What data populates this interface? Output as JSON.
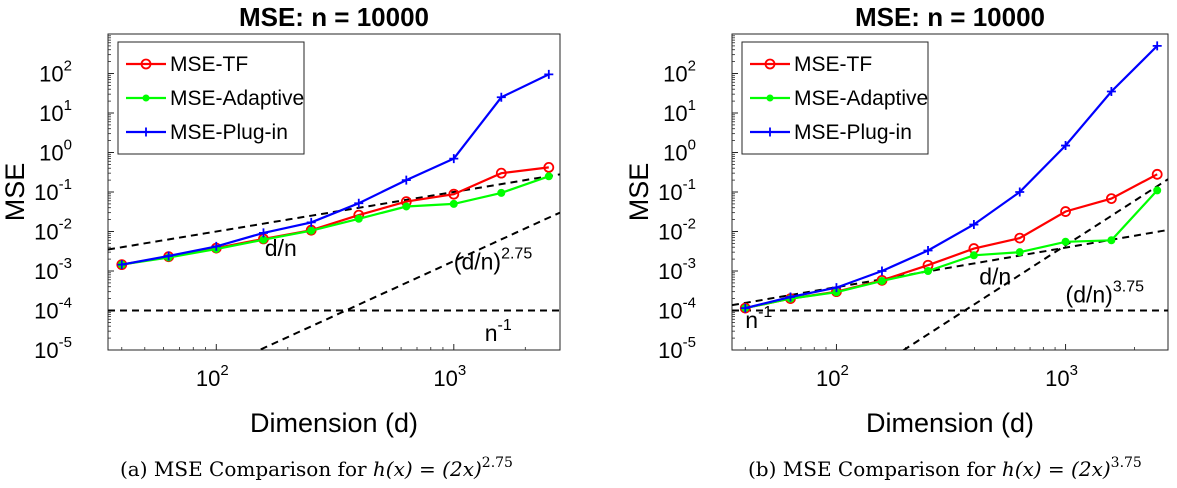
{
  "chart_data": [
    {
      "type": "line",
      "title": "MSE: n = 10000",
      "xlabel": "Dimension (d)",
      "ylabel": "MSE",
      "xscale": "log",
      "yscale": "log",
      "xlim": [
        35,
        2800
      ],
      "ylim": [
        1e-05,
        1000
      ],
      "grid": false,
      "legend_position": "top-left",
      "x_ticks": [
        {
          "value": 100,
          "base": "10",
          "exp": "2"
        },
        {
          "value": 1000,
          "base": "10",
          "exp": "3"
        }
      ],
      "y_ticks": [
        {
          "value": 1e-05,
          "base": "10",
          "exp": "-5"
        },
        {
          "value": 0.0001,
          "base": "10",
          "exp": "-4"
        },
        {
          "value": 0.001,
          "base": "10",
          "exp": "-3"
        },
        {
          "value": 0.01,
          "base": "10",
          "exp": "-2"
        },
        {
          "value": 0.1,
          "base": "10",
          "exp": "-1"
        },
        {
          "value": 1,
          "base": "10",
          "exp": "0"
        },
        {
          "value": 10,
          "base": "10",
          "exp": "1"
        },
        {
          "value": 100,
          "base": "10",
          "exp": "2"
        }
      ],
      "x": [
        40,
        63,
        100,
        158,
        251,
        398,
        631,
        1000,
        1585,
        2512
      ],
      "series": [
        {
          "name": "MSE-TF",
          "color": "#ff0000",
          "marker": "circle",
          "values": [
            0.00145,
            0.0023,
            0.0038,
            0.0065,
            0.0108,
            0.026,
            0.057,
            0.088,
            0.3,
            0.42
          ]
        },
        {
          "name": "MSE-Adaptive",
          "color": "#00ff00",
          "marker": "dot",
          "values": [
            0.00145,
            0.0022,
            0.0036,
            0.0062,
            0.0105,
            0.021,
            0.043,
            0.05,
            0.095,
            0.25
          ]
        },
        {
          "name": "MSE-Plug-in",
          "color": "#0000ff",
          "marker": "plus",
          "values": [
            0.00145,
            0.0024,
            0.0042,
            0.0092,
            0.017,
            0.052,
            0.2,
            0.7,
            25,
            95
          ]
        }
      ],
      "reference_lines": [
        {
          "type": "power",
          "coef": 0.0001,
          "exp": 1,
          "label_base": "d/n",
          "label_exp": "",
          "label_at": [
            160,
            0.0024
          ]
        },
        {
          "type": "power",
          "coef": 1e-11,
          "exp": 2.75,
          "label_base": "(d/n)",
          "label_exp": "2.75",
          "label_at": [
            1000,
            0.0011
          ]
        },
        {
          "type": "constant",
          "value": 0.0001,
          "label_base": "n",
          "label_exp": "-1",
          "label_at": [
            1350,
            1.7e-05
          ]
        }
      ],
      "caption_prefix": "(a) MSE Comparison for ",
      "caption_formula": "h(x) = (2x)",
      "caption_exp": "2.75"
    },
    {
      "type": "line",
      "title": "MSE: n = 10000",
      "xlabel": "Dimension (d)",
      "ylabel": "MSE",
      "xscale": "log",
      "yscale": "log",
      "xlim": [
        35,
        2800
      ],
      "ylim": [
        1e-05,
        1000
      ],
      "grid": false,
      "legend_position": "top-left",
      "x_ticks": [
        {
          "value": 100,
          "base": "10",
          "exp": "2"
        },
        {
          "value": 1000,
          "base": "10",
          "exp": "3"
        }
      ],
      "y_ticks": [
        {
          "value": 1e-05,
          "base": "10",
          "exp": "-5"
        },
        {
          "value": 0.0001,
          "base": "10",
          "exp": "-4"
        },
        {
          "value": 0.001,
          "base": "10",
          "exp": "-3"
        },
        {
          "value": 0.01,
          "base": "10",
          "exp": "-2"
        },
        {
          "value": 0.1,
          "base": "10",
          "exp": "-1"
        },
        {
          "value": 1,
          "base": "10",
          "exp": "0"
        },
        {
          "value": 10,
          "base": "10",
          "exp": "1"
        },
        {
          "value": 100,
          "base": "10",
          "exp": "2"
        }
      ],
      "x": [
        40,
        63,
        100,
        158,
        251,
        398,
        631,
        1000,
        1585,
        2512
      ],
      "series": [
        {
          "name": "MSE-TF",
          "color": "#ff0000",
          "marker": "circle",
          "values": [
            0.000115,
            0.0002,
            0.0003,
            0.00058,
            0.0014,
            0.0037,
            0.0068,
            0.032,
            0.068,
            0.28
          ]
        },
        {
          "name": "MSE-Adaptive",
          "color": "#00ff00",
          "marker": "dot",
          "values": [
            0.000115,
            0.0002,
            0.00029,
            0.00056,
            0.001,
            0.0025,
            0.003,
            0.0055,
            0.006,
            0.11
          ]
        },
        {
          "name": "MSE-Plug-in",
          "color": "#0000ff",
          "marker": "plus",
          "values": [
            0.000115,
            0.00022,
            0.00038,
            0.001,
            0.0033,
            0.015,
            0.1,
            1.5,
            35,
            500
          ]
        }
      ],
      "reference_lines": [
        {
          "type": "power",
          "coef": 3.9e-06,
          "exp": 1,
          "label_base": "d/n",
          "label_exp": "",
          "label_at": [
            420,
            0.00045
          ]
        },
        {
          "type": "power",
          "coef": 2.5e-14,
          "exp": 3.75,
          "label_base": "(d/n)",
          "label_exp": "3.75",
          "label_at": [
            1000,
            0.00016
          ]
        },
        {
          "type": "constant",
          "value": 0.0001,
          "label_base": "n",
          "label_exp": "-1",
          "label_at": [
            40,
            3.6e-05
          ]
        }
      ],
      "caption_prefix": "(b) MSE Comparison for ",
      "caption_formula": "h(x) = (2x)",
      "caption_exp": "3.75"
    }
  ]
}
